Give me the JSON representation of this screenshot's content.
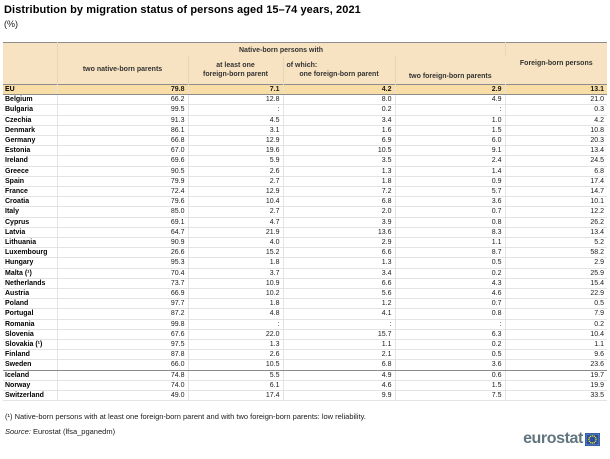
{
  "page": {
    "title": "Distribution by migration status of persons aged 15–74 years, 2021",
    "unit_label": "(%)"
  },
  "chart_data": {
    "type": "table",
    "title": "Distribution by migration status of persons aged 15–74 years, 2021",
    "unit": "%",
    "missing_value_symbol": ":",
    "column_group": "Native-born persons with",
    "columns": [
      "two native-born parents",
      "at least one foreign-born parent",
      "of which: one foreign-born parent",
      "two foreign-born parents",
      "Foreign-born persons"
    ],
    "rows": [
      {
        "name": "EU",
        "values": [
          "79.8",
          "7.1",
          "4.2",
          "2.9",
          "13.1"
        ],
        "style": "eu"
      },
      {
        "name": "Belgium",
        "values": [
          "66.2",
          "12.8",
          "8.0",
          "4.9",
          "21.0"
        ],
        "style": ""
      },
      {
        "name": "Bulgaria",
        "values": [
          "99.5",
          ":",
          "0.2",
          ":",
          "0.3"
        ],
        "style": ""
      },
      {
        "name": "Czechia",
        "values": [
          "91.3",
          "4.5",
          "3.4",
          "1.0",
          "4.2"
        ],
        "style": ""
      },
      {
        "name": "Denmark",
        "values": [
          "86.1",
          "3.1",
          "1.6",
          "1.5",
          "10.8"
        ],
        "style": ""
      },
      {
        "name": "Germany",
        "values": [
          "66.8",
          "12.9",
          "6.9",
          "6.0",
          "20.3"
        ],
        "style": ""
      },
      {
        "name": "Estonia",
        "values": [
          "67.0",
          "19.6",
          "10.5",
          "9.1",
          "13.4"
        ],
        "style": ""
      },
      {
        "name": "Ireland",
        "values": [
          "69.6",
          "5.9",
          "3.5",
          "2.4",
          "24.5"
        ],
        "style": ""
      },
      {
        "name": "Greece",
        "values": [
          "90.5",
          "2.6",
          "1.3",
          "1.4",
          "6.8"
        ],
        "style": ""
      },
      {
        "name": "Spain",
        "values": [
          "79.9",
          "2.7",
          "1.8",
          "0.9",
          "17.4"
        ],
        "style": ""
      },
      {
        "name": "France",
        "values": [
          "72.4",
          "12.9",
          "7.2",
          "5.7",
          "14.7"
        ],
        "style": ""
      },
      {
        "name": "Croatia",
        "values": [
          "79.6",
          "10.4",
          "6.8",
          "3.6",
          "10.1"
        ],
        "style": ""
      },
      {
        "name": "Italy",
        "values": [
          "85.0",
          "2.7",
          "2.0",
          "0.7",
          "12.2"
        ],
        "style": ""
      },
      {
        "name": "Cyprus",
        "values": [
          "69.1",
          "4.7",
          "3.9",
          "0.8",
          "26.2"
        ],
        "style": ""
      },
      {
        "name": "Latvia",
        "values": [
          "64.7",
          "21.9",
          "13.6",
          "8.3",
          "13.4"
        ],
        "style": ""
      },
      {
        "name": "Lithuania",
        "values": [
          "90.9",
          "4.0",
          "2.9",
          "1.1",
          "5.2"
        ],
        "style": ""
      },
      {
        "name": "Luxembourg",
        "values": [
          "26.6",
          "15.2",
          "6.6",
          "8.7",
          "58.2"
        ],
        "style": ""
      },
      {
        "name": "Hungary",
        "values": [
          "95.3",
          "1.8",
          "1.3",
          "0.5",
          "2.9"
        ],
        "style": ""
      },
      {
        "name": "Malta (¹)",
        "values": [
          "70.4",
          "3.7",
          "3.4",
          "0.2",
          "25.9"
        ],
        "style": ""
      },
      {
        "name": "Netherlands",
        "values": [
          "73.7",
          "10.9",
          "6.6",
          "4.3",
          "15.4"
        ],
        "style": ""
      },
      {
        "name": "Austria",
        "values": [
          "66.9",
          "10.2",
          "5.6",
          "4.6",
          "22.9"
        ],
        "style": ""
      },
      {
        "name": "Poland",
        "values": [
          "97.7",
          "1.8",
          "1.2",
          "0.7",
          "0.5"
        ],
        "style": ""
      },
      {
        "name": "Portugal",
        "values": [
          "87.2",
          "4.8",
          "4.1",
          "0.8",
          "7.9"
        ],
        "style": ""
      },
      {
        "name": "Romania",
        "values": [
          "99.8",
          ":",
          ":",
          ":",
          "0.2"
        ],
        "style": ""
      },
      {
        "name": "Slovenia",
        "values": [
          "67.6",
          "22.0",
          "15.7",
          "6.3",
          "10.4"
        ],
        "style": ""
      },
      {
        "name": "Slovakia (¹)",
        "values": [
          "97.5",
          "1.3",
          "1.1",
          "0.2",
          "1.1"
        ],
        "style": ""
      },
      {
        "name": "Finland",
        "values": [
          "87.8",
          "2.6",
          "2.1",
          "0.5",
          "9.6"
        ],
        "style": ""
      },
      {
        "name": "Sweden",
        "values": [
          "66.0",
          "10.5",
          "6.8",
          "3.6",
          "23.6"
        ],
        "style": "sep-below"
      },
      {
        "name": "Iceland",
        "values": [
          "74.8",
          "5.5",
          "4.9",
          "0.6",
          "19.7"
        ],
        "style": ""
      },
      {
        "name": "Norway",
        "values": [
          "74.0",
          "6.1",
          "4.6",
          "1.5",
          "19.9"
        ],
        "style": ""
      },
      {
        "name": "Switzerland",
        "values": [
          "49.0",
          "17.4",
          "9.9",
          "7.5",
          "33.5"
        ],
        "style": ""
      }
    ]
  },
  "table_header": {
    "group_native_born": "Native-born persons with",
    "two_native_parents": "two native-born parents",
    "at_least_one_line1": "at least one",
    "at_least_one_line2": "foreign-born parent",
    "of_which": "of which:",
    "one_foreign_parent": "one foreign-born parent",
    "two_foreign_parents": "two foreign-born parents",
    "foreign_born": "Foreign-born persons"
  },
  "footer": {
    "footnote": "(¹) Native-born persons with at least one foreign-born parent and with two foreign-born parents: low reliability.",
    "source_prefix": "Source:",
    "source_text": " Eurostat (lfsa_pganedm)",
    "logo_text": "eurostat"
  },
  "colors": {
    "header_bg": "#f7e3c1",
    "eu_row_bg": "#f8dda6",
    "dark_border": "#8c8c8c",
    "light_border": "#e3e3e3",
    "logo_gray": "#62757f",
    "eu_blue": "#26519f",
    "star_yellow": "#ffd617"
  }
}
